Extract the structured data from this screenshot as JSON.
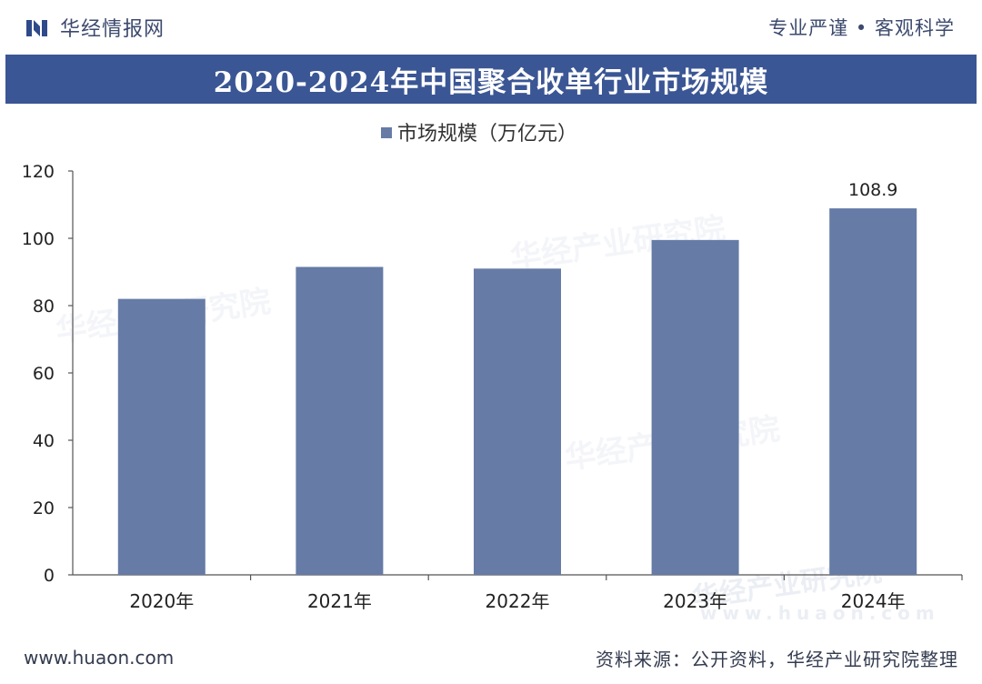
{
  "header": {
    "brand": "华经情报网",
    "slogan": "专业严谨 • 客观科学"
  },
  "title": "2020-2024年中国聚合收单行业市场规模",
  "chart_data": {
    "type": "bar",
    "title": "2020-2024年中国聚合收单行业市场规模",
    "categories": [
      "2020年",
      "2021年",
      "2022年",
      "2023年",
      "2024年"
    ],
    "series": [
      {
        "name": "市场规模（万亿元）",
        "values": [
          82,
          91.5,
          91,
          99.5,
          108.9
        ]
      }
    ],
    "data_labels": [
      "",
      "",
      "",
      "",
      "108.9"
    ],
    "yticks": [
      "0",
      "20",
      "40",
      "60",
      "80",
      "100",
      "120"
    ],
    "ylim": [
      0,
      120
    ],
    "xlabel": "",
    "ylabel": "",
    "legend": "top-center",
    "grid": false,
    "bar_color": "#667ba6"
  },
  "watermark": {
    "text": "华经产业研究院",
    "url": "www.huaon.com"
  },
  "footer": {
    "url": "www.huaon.com",
    "source": "资料来源：公开资料，华经产业研究院整理"
  },
  "colors": {
    "banner": "#3b5694",
    "bar": "#667ba6",
    "logo": "#2f4a8a"
  }
}
